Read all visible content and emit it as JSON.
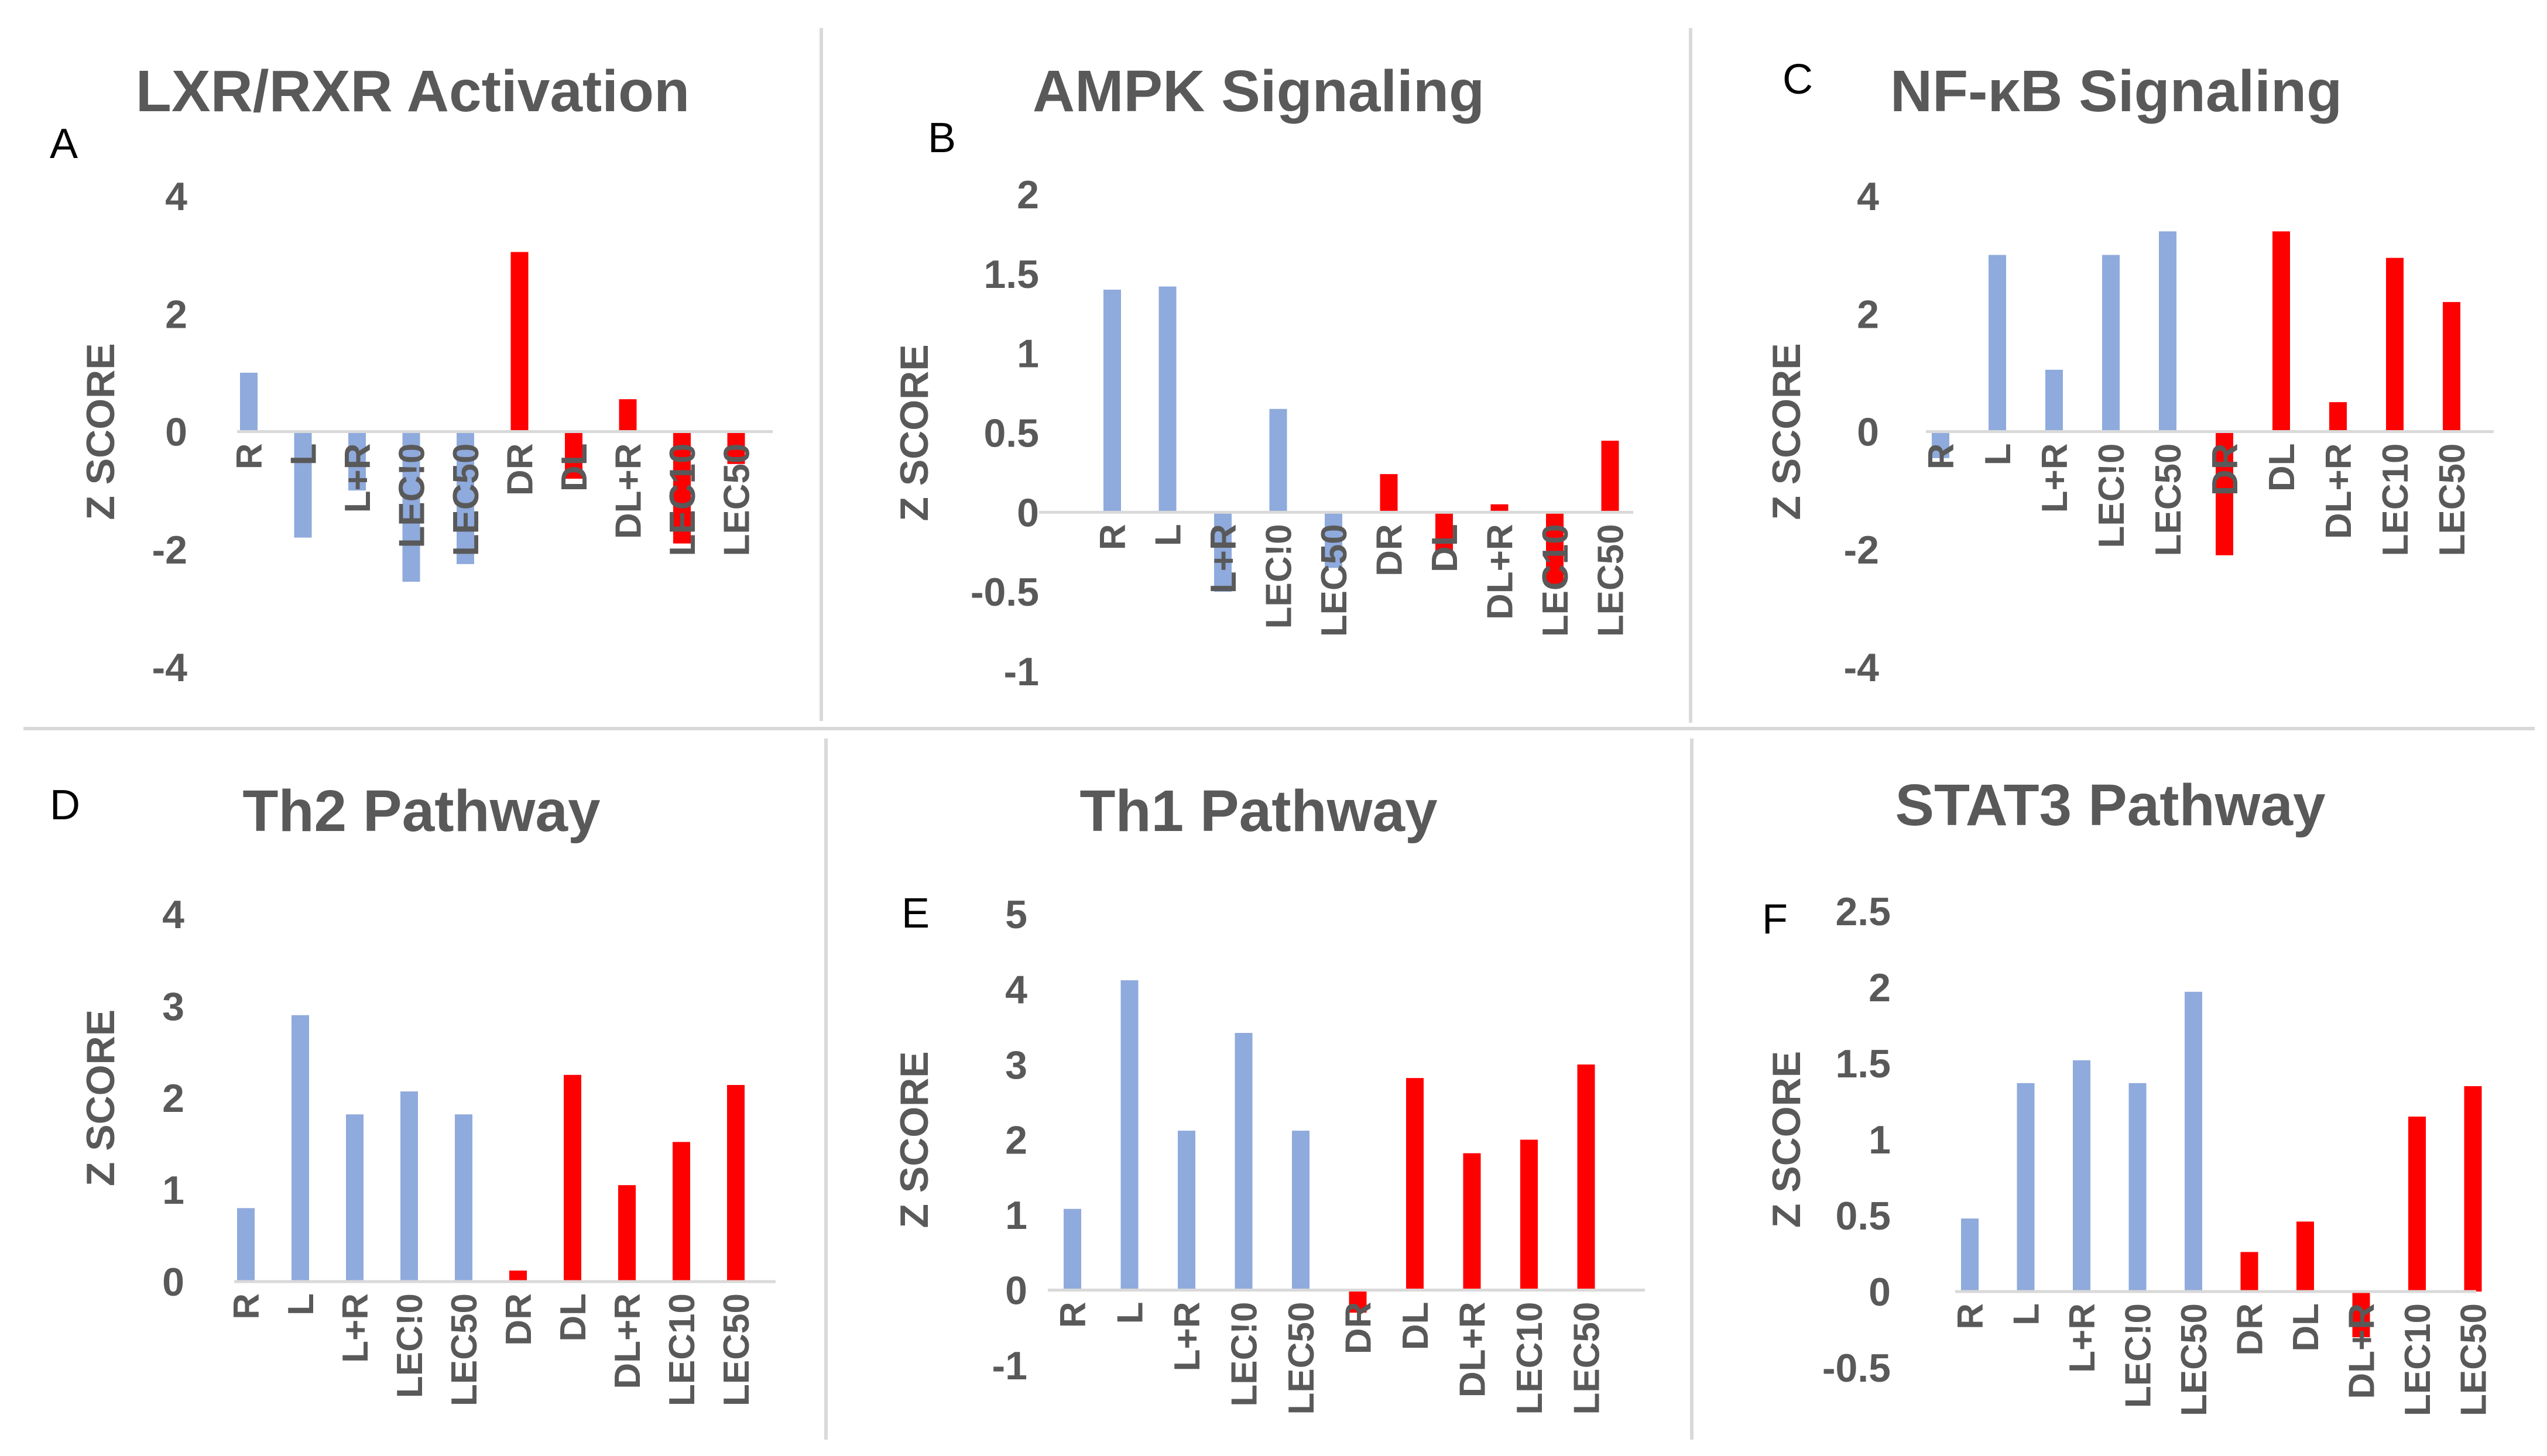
{
  "figure": {
    "colors": {
      "blue": "#8faadc",
      "red": "#ff0000",
      "axis": "#d9d9d9",
      "divider": "#d9d9d9",
      "text": "#595959"
    }
  },
  "chart_data": [
    {
      "letter": "A",
      "type": "bar",
      "title": "LXR/RXR Activation",
      "ylabel": "Z SCORE",
      "ylim": [
        -4,
        4
      ],
      "yticks": [
        -4,
        -2,
        0,
        2,
        4
      ],
      "ytick_labels": [
        "-4",
        "-2",
        "0",
        "2",
        "4"
      ],
      "categories": [
        "R",
        "L",
        "L+R",
        "LEC!0",
        "LEC50",
        "DR",
        "DL",
        "DL+R",
        "LEC10",
        "LEC50"
      ],
      "values": [
        1.0,
        -1.8,
        -1.0,
        -2.55,
        -2.25,
        3.05,
        -0.8,
        0.55,
        -1.9,
        -0.55
      ],
      "bar_colors": [
        "blue",
        "blue",
        "blue",
        "blue",
        "blue",
        "red",
        "red",
        "red",
        "red",
        "red"
      ]
    },
    {
      "letter": "B",
      "type": "bar",
      "title": "AMPK Signaling",
      "ylabel": "Z SCORE",
      "ylim": [
        -1,
        2
      ],
      "yticks": [
        -1,
        -0.5,
        0,
        0.5,
        1,
        1.5,
        2
      ],
      "ytick_labels": [
        "-1",
        "-0.5",
        "0",
        "0.5",
        "1",
        "1.5",
        "2"
      ],
      "categories": [
        "R",
        "L",
        "L+R",
        "LEC!0",
        "LEC50",
        "DR",
        "DL",
        "DL+R",
        "LEC10",
        "LEC50"
      ],
      "values": [
        1.4,
        1.42,
        -0.5,
        0.65,
        -0.35,
        0.24,
        -0.25,
        0.05,
        -0.45,
        0.45
      ],
      "bar_colors": [
        "blue",
        "blue",
        "blue",
        "blue",
        "blue",
        "red",
        "red",
        "red",
        "red",
        "red"
      ]
    },
    {
      "letter": "C",
      "type": "bar",
      "title": "NF-κB Signaling",
      "ylabel": "Z SCORE",
      "ylim": [
        -4,
        4
      ],
      "yticks": [
        -4,
        -2,
        0,
        2,
        4
      ],
      "ytick_labels": [
        "-4",
        "-2",
        "0",
        "2",
        "4"
      ],
      "categories": [
        "R",
        "L",
        "L+R",
        "LEC!0",
        "LEC50",
        "DR",
        "DL",
        "DL+R",
        "LEC10",
        "LEC50"
      ],
      "values": [
        -0.45,
        3.0,
        1.05,
        3.0,
        3.4,
        -2.1,
        3.4,
        0.5,
        2.95,
        2.2
      ],
      "bar_colors": [
        "blue",
        "blue",
        "blue",
        "blue",
        "blue",
        "red",
        "red",
        "red",
        "red",
        "red"
      ]
    },
    {
      "letter": "D",
      "type": "bar",
      "title": "Th2 Pathway",
      "ylabel": "Z SCORE",
      "ylim": [
        0,
        4
      ],
      "yticks": [
        0,
        1,
        2,
        3,
        4
      ],
      "ytick_labels": [
        "0",
        "1",
        "2",
        "3",
        "4"
      ],
      "categories": [
        "R",
        "L",
        "L+R",
        "LEC!0",
        "LEC50",
        "DR",
        "DL",
        "DL+R",
        "LEC10",
        "LEC50"
      ],
      "values": [
        0.8,
        2.9,
        1.82,
        2.07,
        1.82,
        0.12,
        2.25,
        1.05,
        1.52,
        2.14
      ],
      "bar_colors": [
        "blue",
        "blue",
        "blue",
        "blue",
        "blue",
        "red",
        "red",
        "red",
        "red",
        "red"
      ]
    },
    {
      "letter": "E",
      "type": "bar",
      "title": "Th1 Pathway",
      "ylabel": "Z SCORE",
      "ylim": [
        -1,
        5
      ],
      "yticks": [
        -1,
        0,
        1,
        2,
        3,
        4,
        5
      ],
      "ytick_labels": [
        "-1",
        "0",
        "1",
        "2",
        "3",
        "4",
        "5"
      ],
      "categories": [
        "R",
        "L",
        "L+R",
        "LEC!0",
        "LEC50",
        "DR",
        "DL",
        "DL+R",
        "LEC10",
        "LEC50"
      ],
      "values": [
        1.08,
        4.12,
        2.12,
        3.42,
        2.12,
        -0.3,
        2.82,
        1.82,
        2.0,
        3.0
      ],
      "bar_colors": [
        "blue",
        "blue",
        "blue",
        "blue",
        "blue",
        "red",
        "red",
        "red",
        "red",
        "red"
      ]
    },
    {
      "letter": "F",
      "type": "bar",
      "title": "STAT3 Pathway",
      "ylabel": "Z SCORE",
      "ylim": [
        -0.5,
        2.5
      ],
      "yticks": [
        -0.5,
        0,
        0.5,
        1,
        1.5,
        2,
        2.5
      ],
      "ytick_labels": [
        "-0.5",
        "0",
        "0.5",
        "1",
        "1.5",
        "2",
        "2.5"
      ],
      "categories": [
        "R",
        "L",
        "L+R",
        "LEC!0",
        "LEC50",
        "DR",
        "DL",
        "DL+R",
        "LEC10",
        "LEC50"
      ],
      "values": [
        0.48,
        1.37,
        1.52,
        1.37,
        1.97,
        0.26,
        0.46,
        -0.3,
        1.15,
        1.35
      ],
      "bar_colors": [
        "blue",
        "blue",
        "blue",
        "blue",
        "blue",
        "red",
        "red",
        "red",
        "red",
        "red"
      ]
    }
  ]
}
